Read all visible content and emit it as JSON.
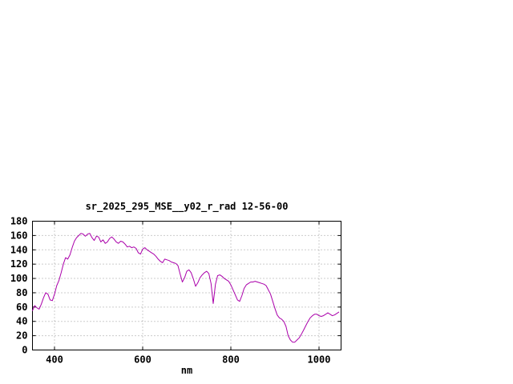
{
  "window": {
    "background": "#ffffff"
  },
  "chart_data": {
    "type": "line",
    "title": "sr_2025_295_MSE__y02_r_rad 12-56-00",
    "xlabel": "nm",
    "ylabel": "",
    "xlim": [
      350,
      1050
    ],
    "ylim": [
      0,
      180
    ],
    "xticks": [
      400,
      600,
      800,
      1000
    ],
    "yticks": [
      0,
      20,
      40,
      60,
      80,
      100,
      120,
      140,
      160,
      180
    ],
    "grid": true,
    "legend_position": "none",
    "line_color": "#aa00aa",
    "axis_color": "#000000",
    "grid_color": "#999999",
    "series": [
      {
        "name": "",
        "x": [
          350,
          355,
          360,
          365,
          370,
          375,
          380,
          385,
          390,
          395,
          400,
          405,
          410,
          415,
          420,
          425,
          430,
          435,
          440,
          445,
          450,
          455,
          460,
          465,
          470,
          475,
          480,
          485,
          490,
          495,
          500,
          505,
          510,
          515,
          520,
          525,
          530,
          535,
          540,
          545,
          550,
          555,
          560,
          565,
          570,
          575,
          580,
          585,
          590,
          595,
          600,
          605,
          610,
          615,
          620,
          625,
          630,
          635,
          640,
          645,
          650,
          655,
          660,
          665,
          670,
          675,
          680,
          685,
          690,
          695,
          700,
          705,
          710,
          715,
          720,
          725,
          730,
          735,
          740,
          745,
          750,
          755,
          760,
          765,
          770,
          775,
          780,
          785,
          790,
          795,
          800,
          805,
          810,
          815,
          820,
          825,
          830,
          835,
          840,
          845,
          850,
          855,
          860,
          865,
          870,
          875,
          880,
          885,
          890,
          895,
          900,
          905,
          910,
          915,
          920,
          925,
          930,
          935,
          940,
          945,
          950,
          955,
          960,
          965,
          970,
          975,
          980,
          985,
          990,
          995,
          1000,
          1005,
          1010,
          1015,
          1020,
          1025,
          1030,
          1035,
          1040,
          1045
        ],
        "y": [
          55,
          62,
          59,
          57,
          64,
          73,
          80,
          78,
          70,
          69,
          78,
          90,
          97,
          108,
          120,
          129,
          127,
          133,
          143,
          152,
          157,
          160,
          163,
          162,
          159,
          162,
          163,
          157,
          153,
          159,
          158,
          151,
          154,
          149,
          151,
          156,
          158,
          155,
          151,
          149,
          152,
          151,
          148,
          144,
          145,
          143,
          144,
          142,
          136,
          134,
          141,
          143,
          140,
          138,
          136,
          134,
          131,
          127,
          124,
          122,
          127,
          126,
          125,
          123,
          122,
          121,
          118,
          106,
          95,
          101,
          110,
          112,
          108,
          99,
          89,
          94,
          101,
          105,
          108,
          110,
          107,
          93,
          65,
          92,
          104,
          105,
          103,
          100,
          98,
          96,
          91,
          84,
          77,
          70,
          68,
          76,
          86,
          91,
          93,
          95,
          95,
          96,
          95,
          94,
          93,
          92,
          90,
          84,
          78,
          68,
          58,
          49,
          45,
          43,
          40,
          33,
          20,
          14,
          11,
          11,
          14,
          17,
          22,
          28,
          34,
          40,
          45,
          48,
          50,
          50,
          48,
          47,
          48,
          50,
          52,
          50,
          48,
          49,
          51,
          53
        ]
      }
    ]
  }
}
